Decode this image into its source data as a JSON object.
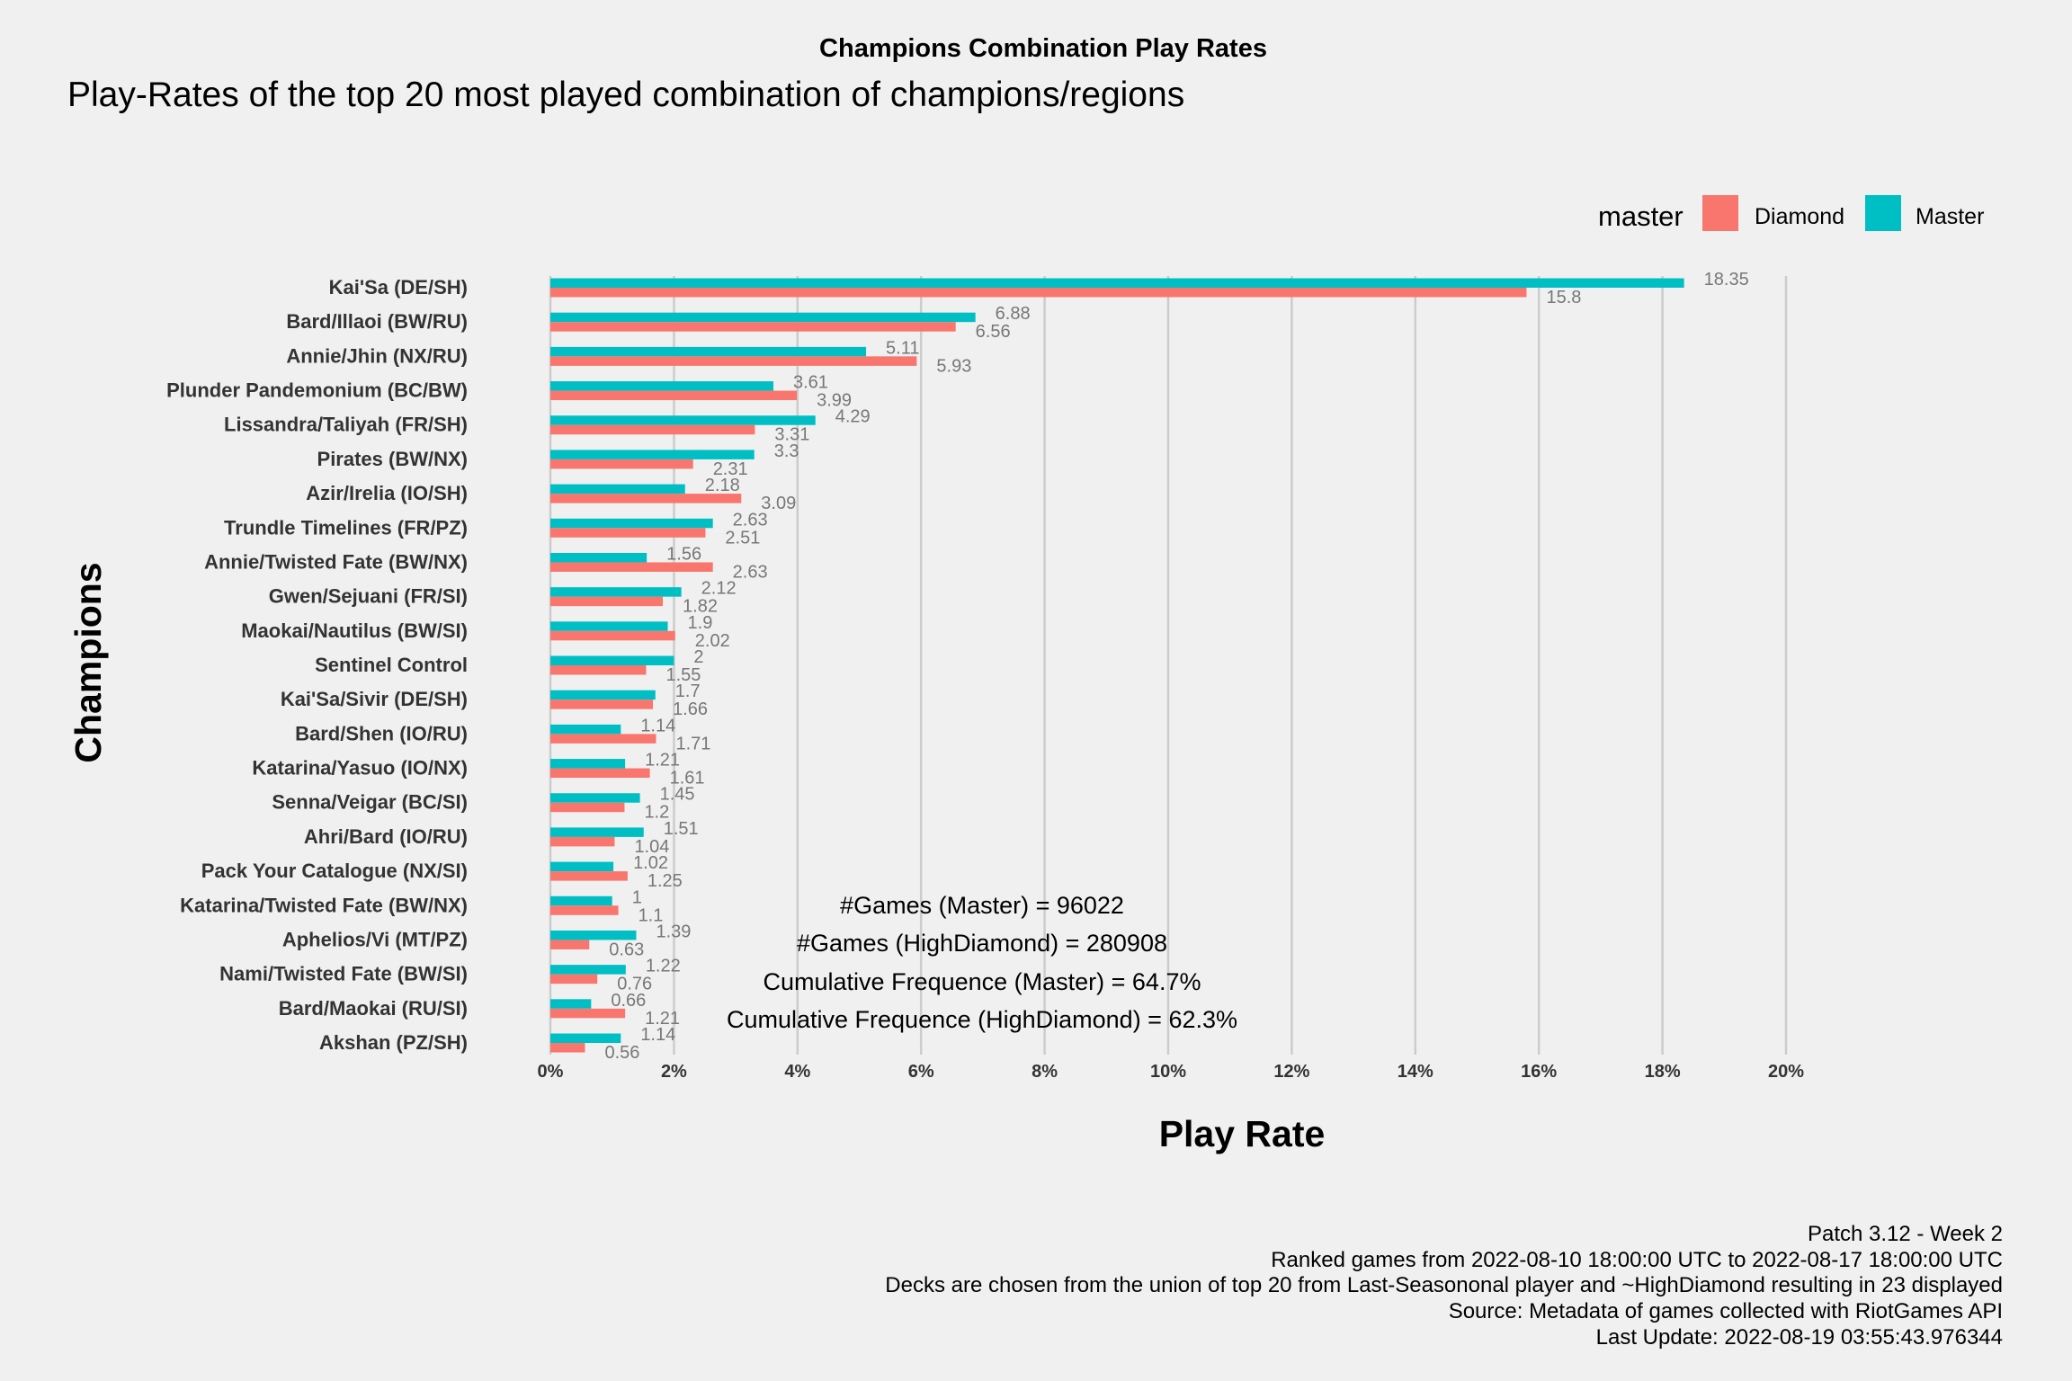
{
  "colors": {
    "background": "#f0f0f0",
    "grid": "#cccccc",
    "diamond": "#f8766d",
    "master": "#00bfc4",
    "value_label": "#777777"
  },
  "chart_data": {
    "type": "bar",
    "orientation": "horizontal",
    "title": "Champions Combination Play Rates",
    "subtitle": "Play-Rates of the top 20 most played combination of champions/regions",
    "xlabel": "Play Rate",
    "ylabel": "Champions",
    "xlim": [
      0,
      20
    ],
    "x_ticks": [
      "0%",
      "2%",
      "4%",
      "6%",
      "8%",
      "10%",
      "12%",
      "14%",
      "16%",
      "18%",
      "20%"
    ],
    "grid": "vertical major",
    "legend": {
      "title": "master",
      "placement": "top-right",
      "entries": [
        "Diamond",
        "Master"
      ]
    },
    "categories": [
      "Kai'Sa (DE/SH)",
      "Bard/Illaoi (BW/RU)",
      "Annie/Jhin (NX/RU)",
      "Plunder Pandemonium (BC/BW)",
      "Lissandra/Taliyah (FR/SH)",
      "Pirates (BW/NX)",
      "Azir/Irelia (IO/SH)",
      "Trundle Timelines (FR/PZ)",
      "Annie/Twisted Fate (BW/NX)",
      "Gwen/Sejuani (FR/SI)",
      "Maokai/Nautilus (BW/SI)",
      "Sentinel Control",
      "Kai'Sa/Sivir (DE/SH)",
      "Bard/Shen (IO/RU)",
      "Katarina/Yasuo (IO/NX)",
      "Senna/Veigar (BC/SI)",
      "Ahri/Bard (IO/RU)",
      "Pack Your Catalogue (NX/SI)",
      "Katarina/Twisted Fate (BW/NX)",
      "Aphelios/Vi (MT/PZ)",
      "Nami/Twisted Fate (BW/SI)",
      "Bard/Maokai (RU/SI)",
      "Akshan (PZ/SH)"
    ],
    "series": [
      {
        "name": "Master",
        "values": [
          18.35,
          6.88,
          5.11,
          3.61,
          4.29,
          3.3,
          2.18,
          2.63,
          1.56,
          2.12,
          1.9,
          2,
          1.7,
          1.14,
          1.21,
          1.45,
          1.51,
          1.02,
          1,
          1.39,
          1.22,
          0.66,
          1.14
        ],
        "labels": [
          "18.35",
          "6.88",
          "5.11",
          "3.61",
          "4.29",
          "3.3",
          "2.18",
          "2.63",
          "1.56",
          "2.12",
          "1.9",
          "2",
          "1.7",
          "1.14",
          "1.21",
          "1.45",
          "1.51",
          "1.02",
          "1",
          "1.39",
          "1.22",
          "0.66",
          "1.14"
        ]
      },
      {
        "name": "Diamond",
        "values": [
          15.8,
          6.56,
          5.93,
          3.99,
          3.31,
          2.31,
          3.09,
          2.51,
          2.63,
          1.82,
          2.02,
          1.55,
          1.66,
          1.71,
          1.61,
          1.2,
          1.04,
          1.25,
          1.1,
          0.63,
          0.76,
          1.21,
          0.56
        ],
        "labels": [
          "15.8",
          "6.56",
          "5.93",
          "3.99",
          "3.31",
          "2.31",
          "3.09",
          "2.51",
          "2.63",
          "1.82",
          "2.02",
          "1.55",
          "1.66",
          "1.71",
          "1.61",
          "1.2",
          "1.04",
          "1.25",
          "1.1",
          "0.63",
          "0.76",
          "1.21",
          "0.56"
        ]
      }
    ],
    "annotations": [
      "#Games (Master) = 96022",
      "#Games (HighDiamond) = 280908",
      "Cumulative Frequence (Master) = 64.7%",
      "Cumulative Frequence (HighDiamond) = 62.3%"
    ],
    "caption": [
      "Patch 3.12 - Week 2",
      "Ranked games from 2022-08-10 18:00:00 UTC to 2022-08-17 18:00:00 UTC",
      "Decks are chosen from the union of top 20 from Last-Seasononal player and ~HighDiamond resulting in 23 displayed",
      "Source: Metadata of games collected with RiotGames API",
      "Last Update: 2022-08-19 03:55:43.976344"
    ]
  }
}
